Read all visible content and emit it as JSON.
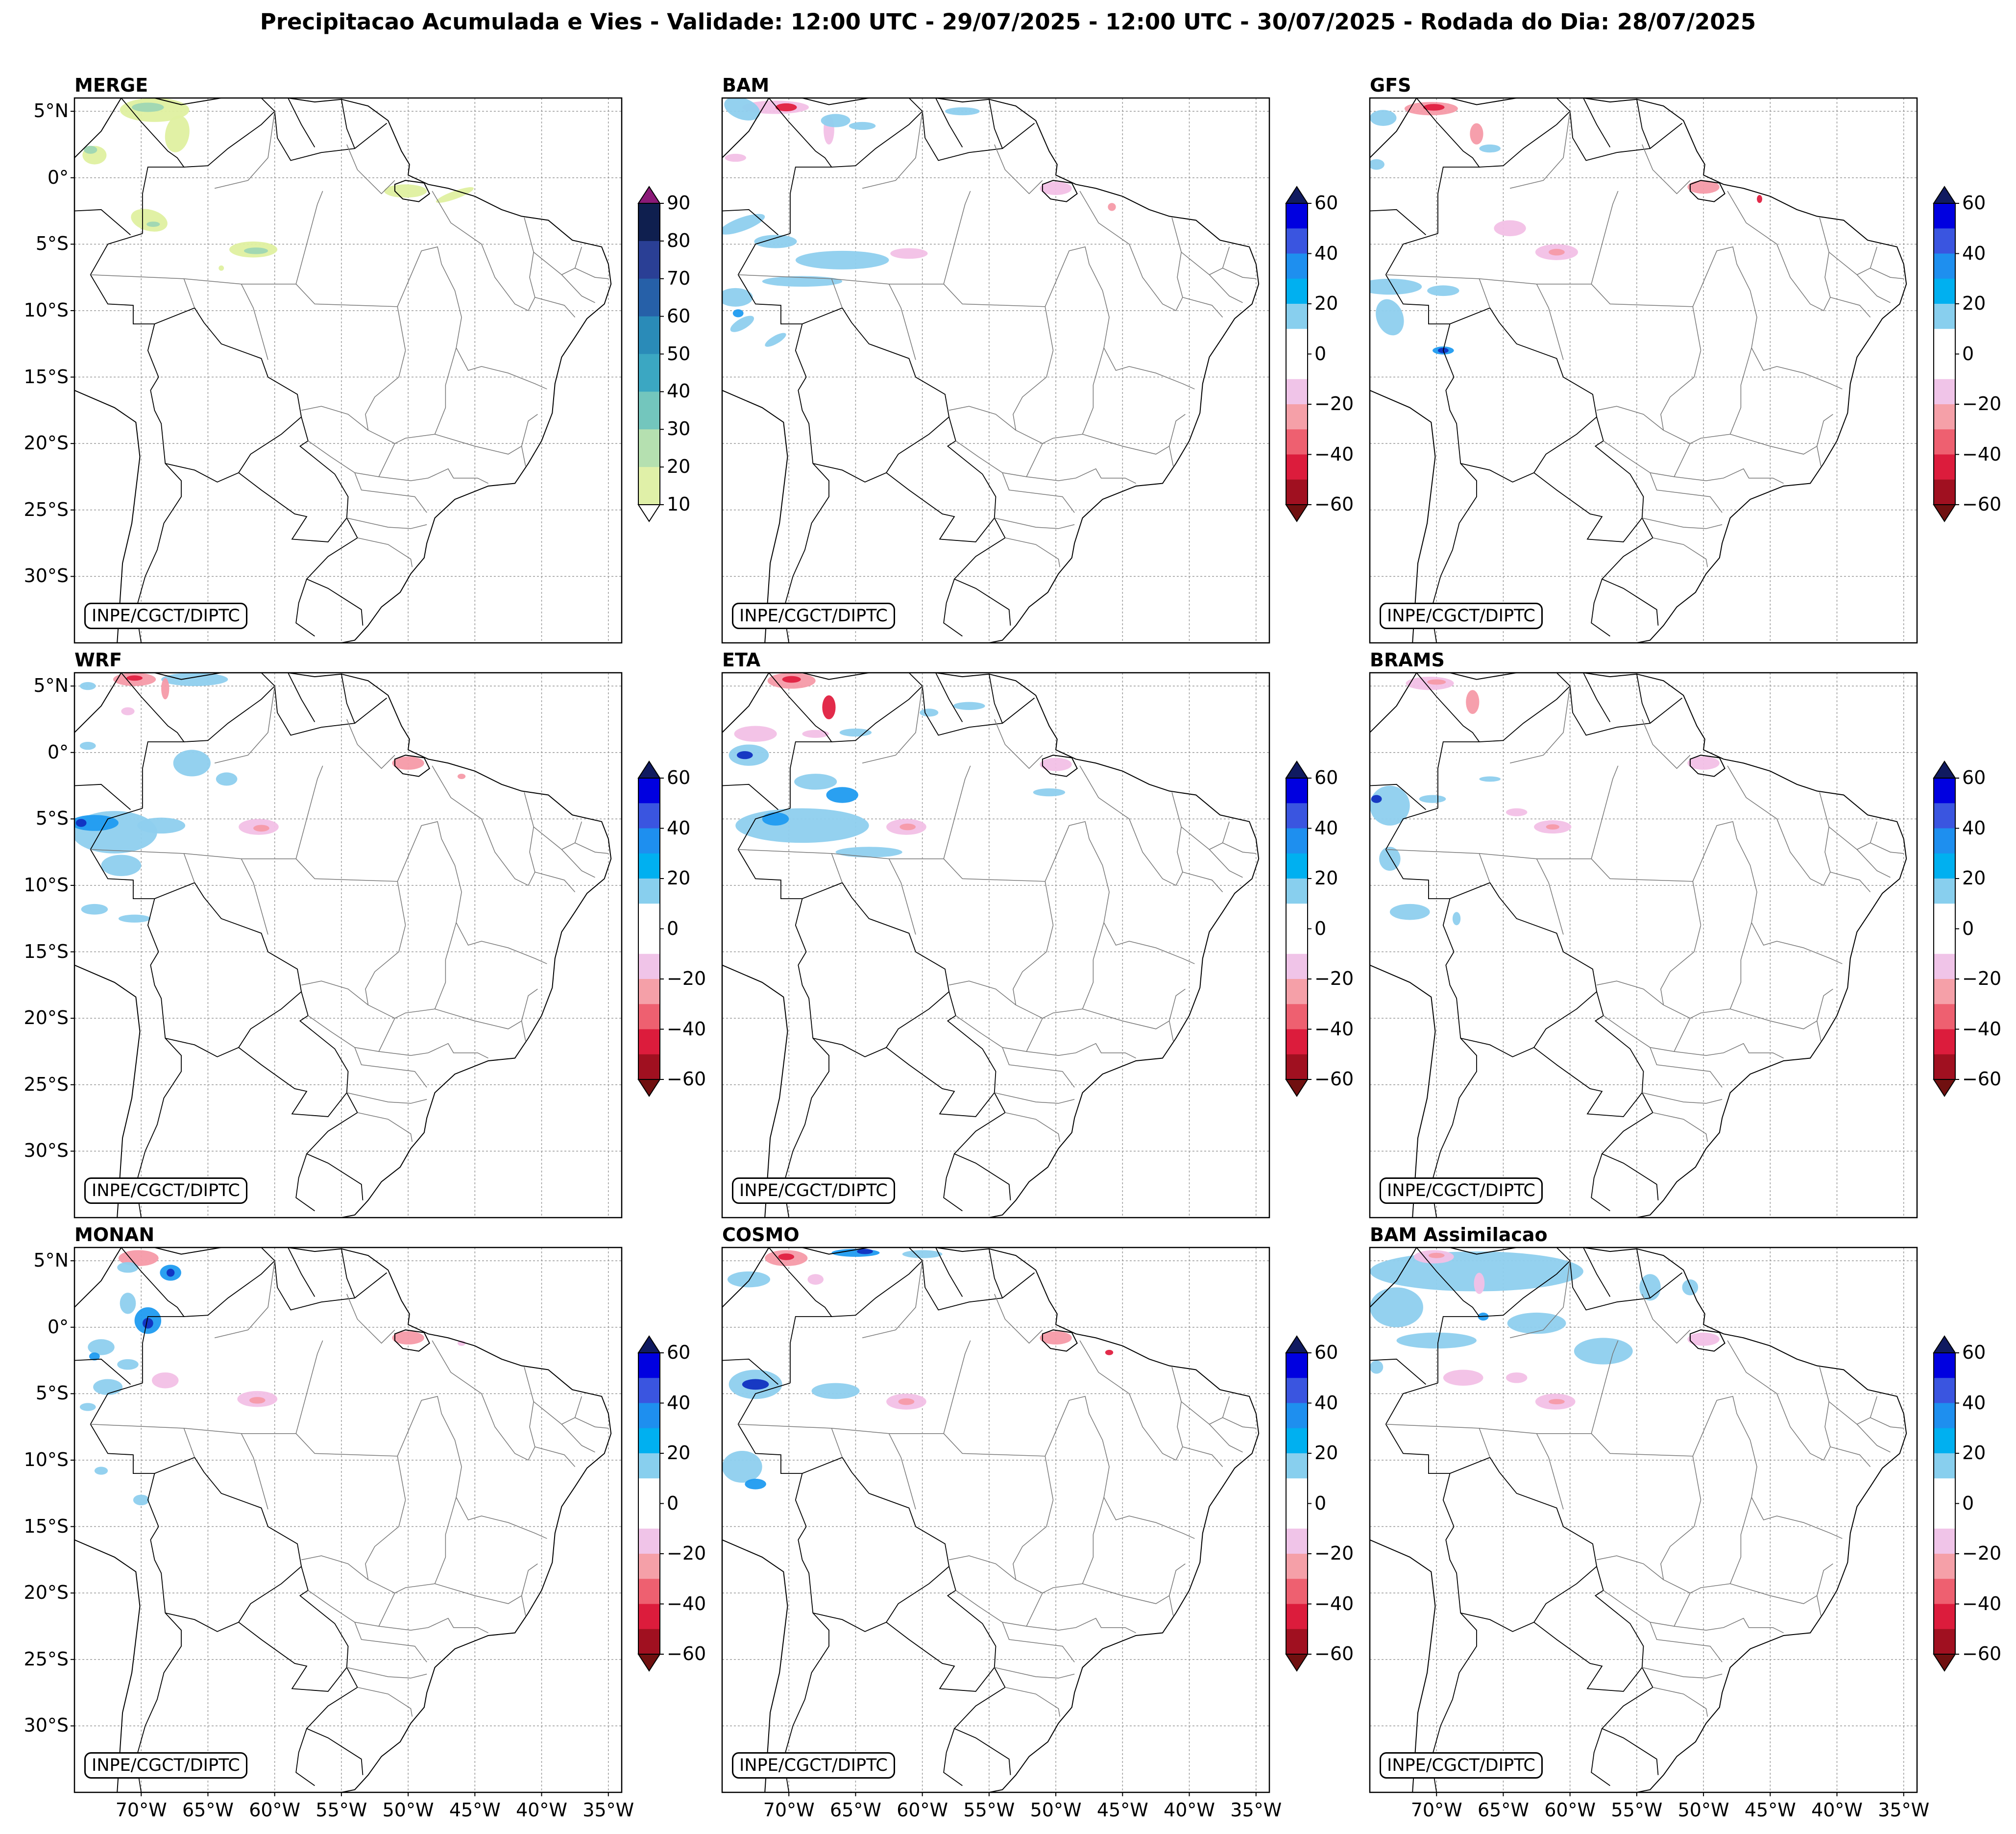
{
  "title": "Precipitacao Acumulada e Vies - Validade: 12:00 UTC - 29/07/2025 - 12:00 UTC - 30/07/2025 - Rodada do Dia: 28/07/2025",
  "credit": "INPE/CGCT/DIPTC",
  "panels": [
    {
      "name": "MERGE",
      "kind": "precip"
    },
    {
      "name": "BAM",
      "kind": "bias"
    },
    {
      "name": "GFS",
      "kind": "bias"
    },
    {
      "name": "WRF",
      "kind": "bias"
    },
    {
      "name": "ETA",
      "kind": "bias"
    },
    {
      "name": "BRAMS",
      "kind": "bias"
    },
    {
      "name": "MONAN",
      "kind": "bias"
    },
    {
      "name": "COSMO",
      "kind": "bias"
    },
    {
      "name": "BAM Assimilacao",
      "kind": "bias"
    }
  ],
  "lat_labels": [
    "5°N",
    "0°",
    "5°S",
    "10°S",
    "15°S",
    "20°S",
    "25°S",
    "30°S"
  ],
  "lon_labels": [
    "70°W",
    "65°W",
    "60°W",
    "55°W",
    "50°W",
    "45°W",
    "40°W",
    "35°W"
  ],
  "colorbars": {
    "precip": {
      "ticks": [
        "90",
        "80",
        "70",
        "60",
        "50",
        "40",
        "30",
        "20",
        "10"
      ],
      "colors": [
        "#0f1f4f",
        "#2a3f95",
        "#2660a8",
        "#2a8bb8",
        "#3ba7c2",
        "#73c6bd",
        "#b5e0b0",
        "#e0f0a8"
      ],
      "top_arrow": "#8b1a78",
      "bottom_arrow": "#ffffff"
    },
    "bias": {
      "ticks": [
        "60",
        "40",
        "20",
        "0",
        "−20",
        "−40",
        "−60"
      ],
      "colors": [
        "#0000e0",
        "#3a55e0",
        "#1e8fef",
        "#00b0f0",
        "#88cfee",
        "#ffffff",
        "#ffffff",
        "#f0c4e8",
        "#f5a0a8",
        "#ee6070",
        "#dc1c3c",
        "#a01020"
      ],
      "top_arrow": "#101a60",
      "bottom_arrow": "#701010"
    }
  },
  "colors": {
    "precip_light": "#dff0a0",
    "precip_mid": "#9ed6b3",
    "precip_dark": "#3a9ec0",
    "wet_light": "#8ecfee",
    "wet_mid": "#1f9bf0",
    "wet_dark": "#1030c0",
    "dry_light": "#f2c0e6",
    "dry_mid": "#f59aa8",
    "dry_dark": "#e02040"
  }
}
